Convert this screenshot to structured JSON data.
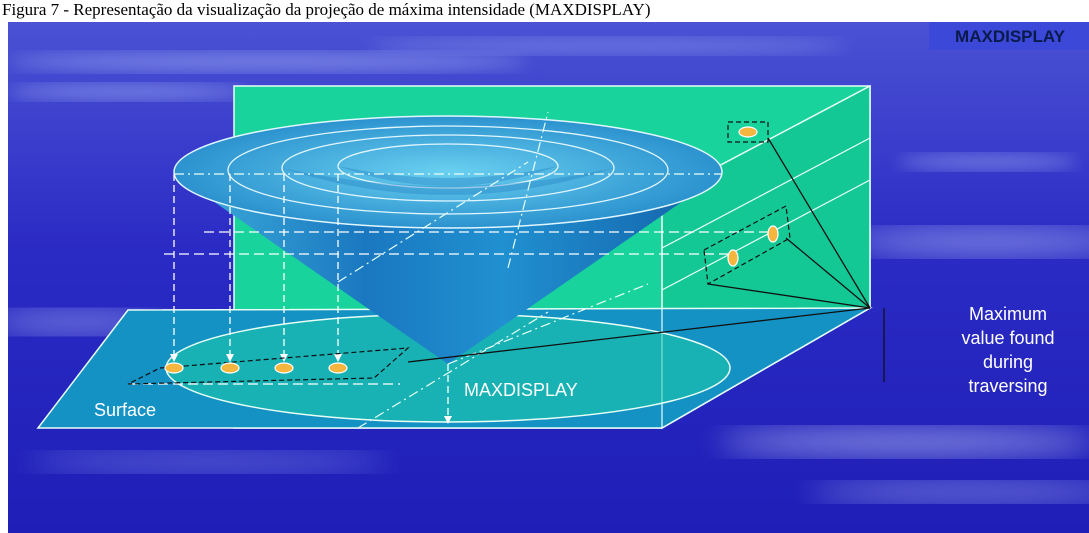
{
  "caption": "Figura 7 - Representação da visualização da projeção de máxima intensidade (MAXDISPLAY)",
  "title_badge": "MAXDISPLAY",
  "labels": {
    "surface": "Surface",
    "maxdisplay": "MAXDISPLAY",
    "max_value_lines": [
      "Maximum",
      "value found",
      "during",
      "traversing"
    ]
  },
  "colors": {
    "background": "#2a2ac8",
    "plane": "#18d49c",
    "surface": "#1492c4",
    "cone": "#1f86c8",
    "marker": "#f5b640",
    "badge": "#3b48d8",
    "badge_text": "#0a1a4a"
  }
}
